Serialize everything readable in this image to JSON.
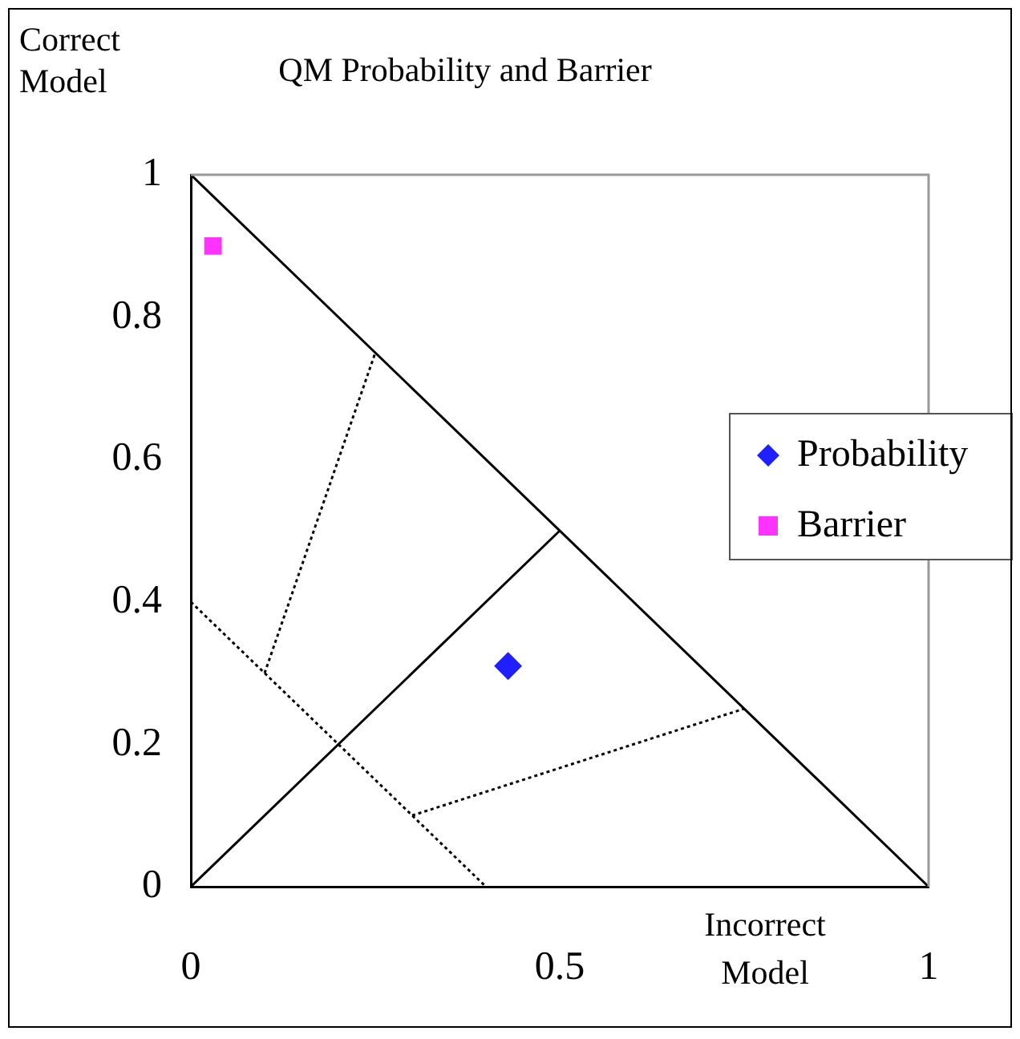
{
  "chart_data": {
    "type": "scatter",
    "title": "QM Probability and Barrier",
    "xlabel": "Incorrect Model",
    "ylabel": "Correct Model",
    "xlim": [
      0,
      1
    ],
    "ylim": [
      0,
      1
    ],
    "xticks": [
      0,
      0.5,
      1
    ],
    "yticks": [
      0,
      0.2,
      0.4,
      0.6,
      0.8,
      1
    ],
    "grid": false,
    "legend": "right",
    "series": [
      {
        "type": "line",
        "color": "#000000",
        "line_style": "solid",
        "marker": "none",
        "x": [
          0,
          1
        ],
        "values": [
          1,
          0
        ]
      },
      {
        "type": "line",
        "color": "#000000",
        "line_style": "solid",
        "marker": "none",
        "x": [
          0,
          0.5
        ],
        "values": [
          0,
          0.5
        ]
      },
      {
        "type": "line",
        "color": "#000000",
        "line_style": "dotted",
        "marker": "none",
        "x": [
          0,
          0.4
        ],
        "values": [
          0.4,
          0
        ]
      },
      {
        "type": "line",
        "color": "#000000",
        "line_style": "dotted",
        "marker": "none",
        "x": [
          0.1,
          0.25
        ],
        "values": [
          0.3,
          0.75
        ]
      },
      {
        "type": "line",
        "color": "#000000",
        "line_style": "dotted",
        "marker": "none",
        "x": [
          0.3,
          0.75
        ],
        "values": [
          0.1,
          0.25
        ]
      },
      {
        "name": "Probability",
        "color": "#1f1fff",
        "marker": "diamond",
        "x": [
          0.43
        ],
        "values": [
          0.31
        ]
      },
      {
        "name": "Barrier",
        "color": "#ff33ff",
        "marker": "square",
        "x": [
          0.03
        ],
        "values": [
          0.9
        ]
      }
    ]
  }
}
